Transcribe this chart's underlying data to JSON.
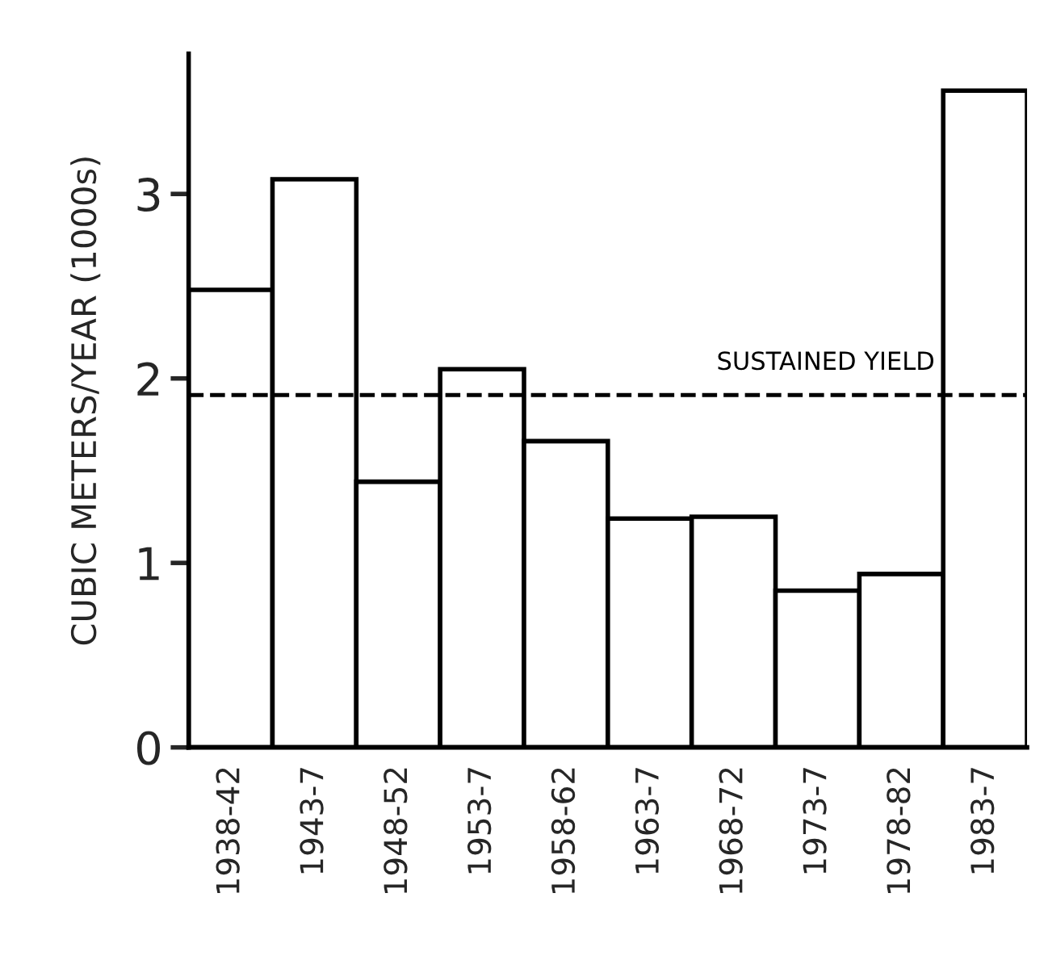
{
  "chart_data": {
    "type": "bar",
    "ylabel": "CUBIC METERS/YEAR (1000s)",
    "categories": [
      "1938-42",
      "1943-7",
      "1948-52",
      "1953-7",
      "1958-62",
      "1963-7",
      "1968-72",
      "1973-7",
      "1978-82",
      "1983-7"
    ],
    "values": [
      2.48,
      3.08,
      1.44,
      2.05,
      1.66,
      1.24,
      1.25,
      0.85,
      0.94,
      3.56
    ],
    "color": "#ffffff",
    "ylim": [
      0,
      3.76
    ],
    "yticks": [
      0,
      1,
      2,
      3
    ],
    "grid": false,
    "ref_lines": [
      {
        "axis": "y",
        "value": 1.91,
        "label": "SUSTAINED YIELD",
        "color": "#000000",
        "line_style": "dashed"
      }
    ]
  }
}
